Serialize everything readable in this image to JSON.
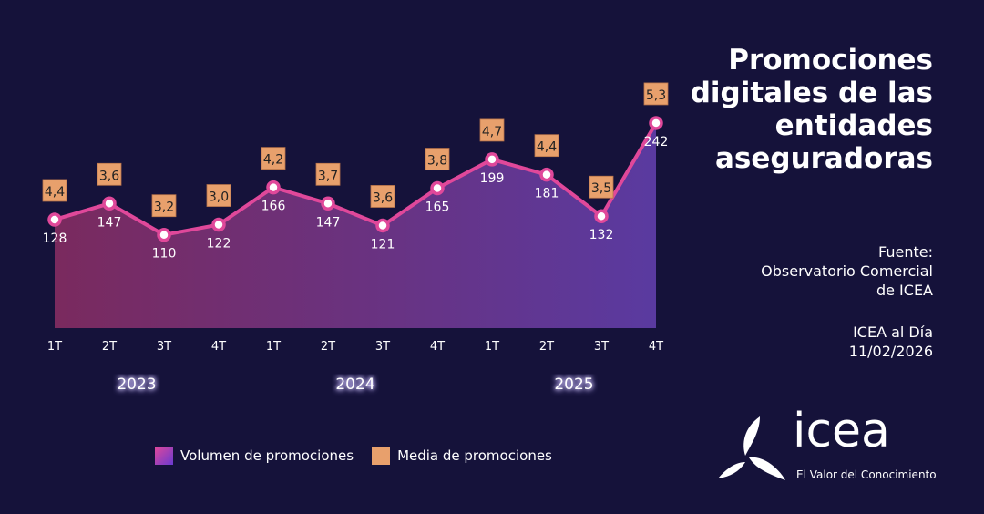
{
  "title": "Promociones digitales de las entidades aseguradoras",
  "source": {
    "label": "Fuente:",
    "line1": "Observatorio Comercial",
    "line2": "de ICEA"
  },
  "publication": {
    "name": "ICEA al Día",
    "date": "11/02/2026"
  },
  "logo": {
    "word": "icea",
    "tagline": "El Valor del Conocimiento"
  },
  "colors": {
    "background": "#15123a",
    "line": "#e0489a",
    "media_box": "#e8a06c",
    "area_start": "#7a2a5e",
    "area_end": "#5a3aa0"
  },
  "chart_data": {
    "type": "area",
    "categories": [
      "1T",
      "2T",
      "3T",
      "4T",
      "1T",
      "2T",
      "3T",
      "4T",
      "1T",
      "2T",
      "3T",
      "4T"
    ],
    "years": [
      {
        "label": "2023",
        "span": [
          0,
          3
        ]
      },
      {
        "label": "2024",
        "span": [
          4,
          7
        ]
      },
      {
        "label": "2025",
        "span": [
          8,
          11
        ]
      }
    ],
    "series": [
      {
        "name": "Volumen de promociones",
        "values": [
          128,
          147,
          110,
          122,
          166,
          147,
          121,
          165,
          199,
          181,
          132,
          242
        ]
      },
      {
        "name": "Media de promociones",
        "values": [
          "4,4",
          "3,6",
          "3,2",
          "3,0",
          "4,2",
          "3,7",
          "3,6",
          "3,8",
          "4,7",
          "4,4",
          "3,5",
          "5,3"
        ]
      }
    ],
    "ylim": [
      0,
      255
    ],
    "legend": "bottom"
  }
}
